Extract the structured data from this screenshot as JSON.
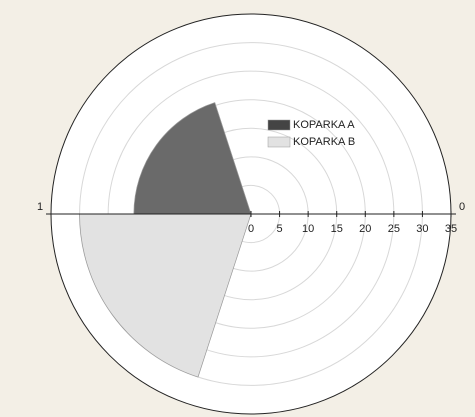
{
  "chart_data": {
    "type": "polar",
    "series": [
      {
        "name": "KOPARKA A",
        "color": "#6a6a6a",
        "values": [
          20.5
        ],
        "theta": [
          0.6,
          1.0
        ]
      },
      {
        "name": "KOPARKA B",
        "color": "#e2e2e2",
        "values": [
          30
        ],
        "theta": [
          1.0,
          1.4
        ]
      }
    ],
    "rlim": [
      0,
      35
    ],
    "rticks": [
      0,
      5,
      10,
      15,
      20,
      25,
      30,
      35
    ],
    "thetalim": [
      0,
      2
    ],
    "thetaticks": [
      0,
      1
    ],
    "grid": true
  }
}
